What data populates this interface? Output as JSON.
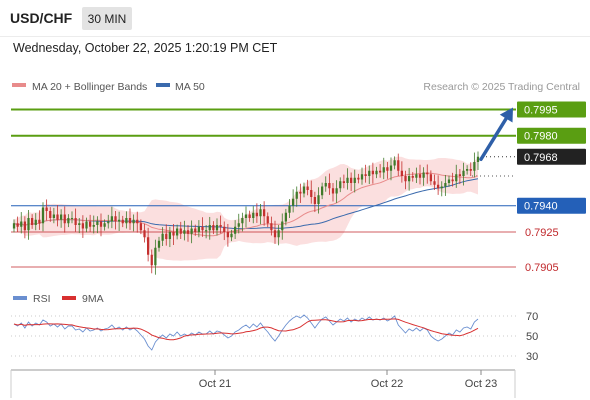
{
  "header": {
    "symbol": "USD/CHF",
    "timeframe": "30 MIN",
    "timestamp": "Wednesday, October 22, 2025 1:20:19 PM CET"
  },
  "legend": {
    "ma20_label": "MA 20 + Bollinger Bands",
    "ma50_label": "MA 50",
    "credit": "Research © 2025 Trading Central",
    "rsi_label": "RSI",
    "ma9_label": "9MA"
  },
  "colors": {
    "resistance_green": "#5a9e12",
    "support_blue": "#2460b8",
    "support_red": "#c0282c",
    "last_price_bg": "#222222",
    "ma20": "#e88b8b",
    "bollinger_fill": "#fbdcdc",
    "ma50": "#3a6aad",
    "candle_up": "#3f7a2a",
    "candle_down": "#c4302f",
    "rsi_line": "#6a8fd0",
    "rsi_ma": "#d83030",
    "arrow": "#2e5fa8"
  },
  "chart_data": {
    "type": "candlestick",
    "instrument": "USD/CHF",
    "timeframe": "30 MIN",
    "ylim": [
      0.7893,
      0.8005
    ],
    "x_ticks": [
      "Oct 21",
      "Oct 22",
      "Oct 23"
    ],
    "levels": [
      {
        "value": 0.7995,
        "label": "0.7995",
        "kind": "resistance"
      },
      {
        "value": 0.798,
        "label": "0.7980",
        "kind": "resistance"
      },
      {
        "value": 0.7968,
        "label": "0.7968",
        "kind": "last"
      },
      {
        "value": 0.794,
        "label": "0.7940",
        "kind": "pivot"
      },
      {
        "value": 0.7925,
        "label": "0.7925",
        "kind": "support"
      },
      {
        "value": 0.7905,
        "label": "0.7905",
        "kind": "support"
      }
    ],
    "forecast": {
      "from": 0.7966,
      "to": 0.7995
    },
    "closes": [
      0.793,
      0.7928,
      0.7931,
      0.7926,
      0.7933,
      0.7929,
      0.7932,
      0.793,
      0.7939,
      0.7937,
      0.7933,
      0.7935,
      0.7932,
      0.7935,
      0.793,
      0.7933,
      0.7933,
      0.7929,
      0.793,
      0.7927,
      0.7931,
      0.7928,
      0.7929,
      0.7931,
      0.7928,
      0.793,
      0.7931,
      0.7934,
      0.7931,
      0.7932,
      0.793,
      0.7933,
      0.793,
      0.7932,
      0.793,
      0.7926,
      0.7922,
      0.7912,
      0.7906,
      0.7916,
      0.792,
      0.7924,
      0.7921,
      0.7925,
      0.7923,
      0.7927,
      0.7924,
      0.7926,
      0.7924,
      0.7927,
      0.7925,
      0.7928,
      0.7926,
      0.7926,
      0.7929,
      0.7926,
      0.7929,
      0.7928,
      0.7925,
      0.7922,
      0.7924,
      0.7928,
      0.793,
      0.7933,
      0.7935,
      0.7933,
      0.7936,
      0.7934,
      0.7938,
      0.7934,
      0.793,
      0.7926,
      0.7922,
      0.7926,
      0.7931,
      0.7936,
      0.794,
      0.7944,
      0.7948,
      0.7947,
      0.7951,
      0.7949,
      0.7945,
      0.7941,
      0.7946,
      0.7951,
      0.7953,
      0.795,
      0.7947,
      0.795,
      0.7954,
      0.7953,
      0.7956,
      0.7953,
      0.7956,
      0.7955,
      0.7958,
      0.7957,
      0.796,
      0.7958,
      0.796,
      0.7959,
      0.7962,
      0.796,
      0.7963,
      0.7966,
      0.796,
      0.7957,
      0.7954,
      0.7957,
      0.7956,
      0.7958,
      0.7956,
      0.7959,
      0.7958,
      0.7954,
      0.7952,
      0.795,
      0.7951,
      0.7953,
      0.7955,
      0.7954,
      0.7958,
      0.7957,
      0.796,
      0.7961,
      0.796,
      0.7965,
      0.7968
    ],
    "rsi": {
      "ticks": [
        30,
        50,
        70
      ],
      "ylim": [
        20,
        80
      ],
      "values": [
        62,
        60,
        63,
        58,
        64,
        60,
        63,
        61,
        66,
        64,
        60,
        62,
        59,
        62,
        57,
        60,
        60,
        56,
        57,
        54,
        58,
        55,
        56,
        58,
        55,
        57,
        58,
        61,
        57,
        59,
        56,
        59,
        56,
        58,
        55,
        51,
        47,
        40,
        36,
        44,
        48,
        51,
        48,
        52,
        50,
        54,
        50,
        52,
        50,
        53,
        51,
        54,
        52,
        52,
        55,
        52,
        55,
        54,
        51,
        48,
        50,
        54,
        56,
        59,
        61,
        58,
        62,
        59,
        63,
        58,
        54,
        49,
        45,
        50,
        56,
        61,
        65,
        68,
        70,
        68,
        71,
        68,
        63,
        58,
        63,
        67,
        69,
        65,
        61,
        64,
        67,
        65,
        68,
        64,
        67,
        65,
        68,
        66,
        69,
        66,
        67,
        66,
        68,
        65,
        67,
        70,
        61,
        57,
        53,
        57,
        55,
        58,
        55,
        58,
        56,
        50,
        47,
        45,
        47,
        50,
        53,
        51,
        56,
        54,
        58,
        59,
        57,
        64,
        67
      ]
    }
  }
}
